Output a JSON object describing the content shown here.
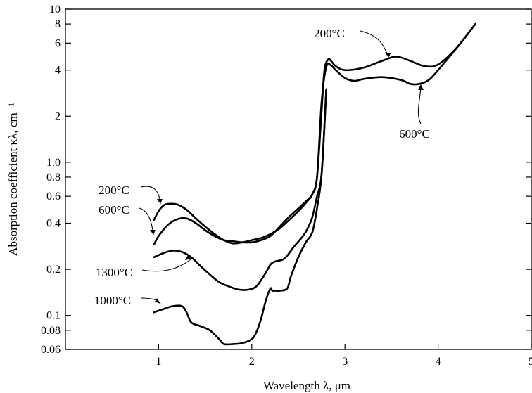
{
  "chart_data": {
    "type": "line",
    "xlabel": "Wavelength  λ, μm",
    "ylabel": "Absorption coefficient  κλ, cm⁻¹",
    "xlim": [
      0,
      5
    ],
    "ylim": [
      0.06,
      10
    ],
    "y_scale": "log",
    "grid": false,
    "legend": "none (curves labeled directly)",
    "x_ticks": [
      {
        "value": 1,
        "label": "1"
      },
      {
        "value": 2,
        "label": "2"
      },
      {
        "value": 3,
        "label": "3"
      },
      {
        "value": 4,
        "label": "4"
      },
      {
        "value": 5,
        "label": "5"
      }
    ],
    "y_ticks": [
      {
        "value": 0.06,
        "label": "0.06"
      },
      {
        "value": 0.08,
        "label": "0.08"
      },
      {
        "value": 0.1,
        "label": "0.1"
      },
      {
        "value": 0.2,
        "label": "0.2"
      },
      {
        "value": 0.4,
        "label": "0.4"
      },
      {
        "value": 0.6,
        "label": "0.6"
      },
      {
        "value": 0.8,
        "label": "0.8"
      },
      {
        "value": 1.0,
        "label": "1.0"
      },
      {
        "value": 2,
        "label": "2"
      },
      {
        "value": 4,
        "label": "4"
      },
      {
        "value": 6,
        "label": "6"
      },
      {
        "value": 8,
        "label": "8"
      },
      {
        "value": 10,
        "label": "10"
      }
    ],
    "series": [
      {
        "name": "200°C",
        "x": [
          0.95,
          1.0,
          1.05,
          1.1,
          1.2,
          1.3,
          1.4,
          1.5,
          1.6,
          1.7,
          1.8,
          1.9,
          2.0,
          2.1,
          2.2,
          2.3,
          2.4,
          2.5,
          2.6,
          2.65,
          2.7,
          2.75,
          2.78,
          2.82,
          2.85,
          2.9,
          3.0,
          3.2,
          3.4,
          3.55,
          3.7,
          3.85,
          4.0,
          4.2,
          4.4
        ],
        "y": [
          0.42,
          0.48,
          0.52,
          0.535,
          0.53,
          0.49,
          0.43,
          0.38,
          0.34,
          0.31,
          0.295,
          0.3,
          0.31,
          0.32,
          0.34,
          0.37,
          0.42,
          0.48,
          0.56,
          0.62,
          0.8,
          2.2,
          4.0,
          4.7,
          4.6,
          4.25,
          4.0,
          4.15,
          4.6,
          4.9,
          4.6,
          4.25,
          4.35,
          5.6,
          8.0
        ]
      },
      {
        "name": "600°C",
        "x": [
          0.95,
          1.0,
          1.1,
          1.2,
          1.3,
          1.4,
          1.5,
          1.6,
          1.7,
          1.8,
          1.9,
          2.0,
          2.1,
          2.2,
          2.3,
          2.4,
          2.5,
          2.6,
          2.65,
          2.7,
          2.75,
          2.8,
          2.85,
          2.9,
          3.0,
          3.1,
          3.2,
          3.4,
          3.6,
          3.7,
          3.8,
          3.9,
          4.0,
          4.2,
          4.4
        ],
        "y": [
          0.29,
          0.33,
          0.39,
          0.425,
          0.43,
          0.4,
          0.36,
          0.33,
          0.31,
          0.305,
          0.3,
          0.3,
          0.31,
          0.33,
          0.38,
          0.44,
          0.5,
          0.57,
          0.62,
          0.8,
          2.5,
          4.2,
          4.3,
          4.0,
          3.55,
          3.4,
          3.5,
          3.6,
          3.45,
          3.25,
          3.25,
          3.45,
          4.0,
          5.6,
          8.0
        ]
      },
      {
        "name": "1300°C",
        "x": [
          0.95,
          1.05,
          1.15,
          1.25,
          1.35,
          1.45,
          1.55,
          1.65,
          1.75,
          1.85,
          1.95,
          2.05,
          2.15,
          2.2,
          2.25,
          2.35,
          2.45,
          2.55,
          2.6,
          2.65,
          2.7,
          2.75,
          2.8
        ],
        "y": [
          0.24,
          0.255,
          0.265,
          0.26,
          0.24,
          0.21,
          0.185,
          0.165,
          0.155,
          0.148,
          0.147,
          0.155,
          0.19,
          0.215,
          0.225,
          0.235,
          0.28,
          0.33,
          0.37,
          0.44,
          0.6,
          0.85,
          3.0
        ]
      },
      {
        "name": "1000°C",
        "x": [
          0.95,
          1.05,
          1.15,
          1.25,
          1.3,
          1.35,
          1.45,
          1.55,
          1.65,
          1.7,
          1.8,
          1.9,
          2.0,
          2.05,
          2.1,
          2.15,
          2.2,
          2.22,
          2.25,
          2.3,
          2.38,
          2.42,
          2.5,
          2.58,
          2.65,
          2.7,
          2.75,
          2.8
        ],
        "y": [
          0.105,
          0.11,
          0.115,
          0.115,
          0.105,
          0.09,
          0.085,
          0.08,
          0.07,
          0.065,
          0.065,
          0.066,
          0.07,
          0.078,
          0.095,
          0.125,
          0.15,
          0.145,
          0.145,
          0.145,
          0.15,
          0.18,
          0.24,
          0.3,
          0.35,
          0.5,
          0.85,
          3.0
        ]
      }
    ],
    "annotations": [
      {
        "text": "200°C",
        "target": "200°C upper branch"
      },
      {
        "text": "600°C",
        "target": "600°C lower branch"
      },
      {
        "text": "200°C",
        "target": "200°C near-IR branch"
      },
      {
        "text": "600°C",
        "target": "600°C near-IR branch"
      },
      {
        "text": "1300°C",
        "target": "1300°C curve"
      },
      {
        "text": "1000°C",
        "target": "1000°C curve"
      }
    ]
  }
}
